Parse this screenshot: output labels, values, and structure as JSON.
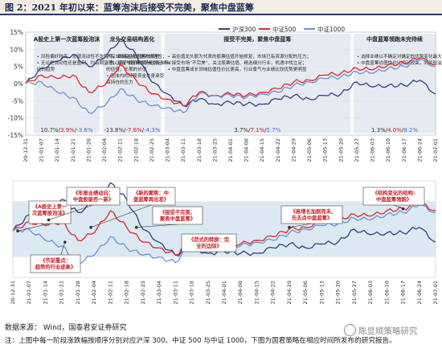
{
  "figure": {
    "title": "图 2：2021 年初以来：蓝筹泡沫后接受不完美，聚焦中盘蓝筹",
    "source": "数据来源：  Wind，国泰君安证券研究",
    "note": "注：上图中每一阶段涨跌幅按顺序分别对应沪深 300、中证 500 与中证 1000，下图为国君策略在相应时间所发布的研究报告。",
    "watermark": "陈显顺策略研究"
  },
  "colors": {
    "csi300": "#34427a",
    "csi500": "#e2252b",
    "csi1000": "#6e8fd6",
    "phase_fill": "#d2dbe9",
    "band_fill": "#bed7ea",
    "accent_red": "#c8191f"
  },
  "legend": [
    "沪深300",
    "中证500",
    "中证1000"
  ],
  "y_ticks": [
    "15%",
    "10%",
    "5%",
    "0%",
    "-5%",
    "-10%",
    "-15%"
  ],
  "dates": [
    "20-12-31",
    "21-01-07",
    "21-01-14",
    "21-01-21",
    "21-01-28",
    "21-02-04",
    "21-02-11",
    "21-02-18",
    "21-02-25",
    "21-03-04",
    "21-03-11",
    "21-03-18",
    "21-03-25",
    "21-04-01",
    "21-04-08",
    "21-04-15",
    "21-04-22",
    "21-04-29",
    "21-05-06",
    "21-05-13",
    "21-05-20",
    "21-05-27",
    "21-06-03",
    "21-06-10",
    "21-06-17",
    "21-06-24",
    "21-07-01"
  ],
  "phases": [
    {
      "title": "A股史上第一次蓝筹股泡沫",
      "desc": "• 风险偏好较高，宏观流动性不急转弯，跟随泡沫才是大的理性；\n• 无论是流动性还是盈利，均有期望差，基金与股票市场都将延续以\n  往的趋势",
      "ret300": "10.7%",
      "ret500": "3.9%",
      "ret1000": "-3.6%"
    },
    {
      "title": "龙头交易结构恶化",
      "desc": "沪深300高估值蓝筹的股价\n• 核心资产股价表现与过去十年\n  的估值，长期的价值\n• 泡沫内的持股资金本身承受\n  高持仓的压力",
      "ret300": "-13.8%",
      "ret500": "-7.6%",
      "ret1000": "-4.3%"
    },
    {
      "title": "接受不完美，聚焦中盘蓝筹",
      "desc": "• 高估值龙头股为代表的股票估值开始修复，市场已有资源分配的压力；\n• 接受市场“不完美”，关注股票估值、精选细分行业，机遇中找立足；\n• 中盘蓝筹成长领域估值性价比更高，行业景气与业绩比较优势更明显",
      "ret300": "3.7%",
      "ret500": "7.1%",
      "ret1000": "5.7%"
    },
    {
      "title": "中盘蓝筹领跑未完待续",
      "desc": "• 选择业绩以不确定对确定的优势变化最大的股票；\n• 中盘蓝筹估值性价比相对较高，同风险溢价，仍在变化的边际中",
      "ret300": "1.3%",
      "ret500": "4.0%",
      "ret1000": "8.2%"
    }
  ],
  "reports": [
    {
      "text": "《A股史上第一\n次蓝筹股泡沫》"
    },
    {
      "text": "《年报业绩动向：\n中盘股能否一新》"
    },
    {
      "text": "《新的聚焦：中\n盘蓝筹再出发》"
    },
    {
      "text": "《节前重点：\n趋势的行业迹象》"
    },
    {
      "text": "《接受不完美，\n聚焦中盘蓝筹》"
    },
    {
      "text": "《范式的转换：完\n全的边际》"
    },
    {
      "text": "《高增长加剧而未,\n先去点中盘蓝筹》"
    },
    {
      "text": "《结构变化的结构:\n中盘蓝筹领跑》"
    }
  ],
  "chart_data": [
    {
      "type": "line",
      "title": "",
      "xlabel": "",
      "ylabel": "",
      "ylim": [
        -15,
        15
      ],
      "legend": "top-right",
      "x": [
        "20-12-31",
        "21-01-07",
        "21-01-14",
        "21-01-21",
        "21-01-28",
        "21-02-04",
        "21-02-11",
        "21-02-18",
        "21-02-25",
        "21-03-04",
        "21-03-11",
        "21-03-18",
        "21-03-25",
        "21-04-01",
        "21-04-08",
        "21-04-15",
        "21-04-22",
        "21-04-29",
        "21-05-06",
        "21-05-13",
        "21-05-20",
        "21-05-27",
        "21-06-03",
        "21-06-10",
        "21-06-17",
        "21-06-24",
        "21-07-01"
      ],
      "series": [
        {
          "name": "沪深300",
          "values": [
            0,
            4.5,
            6.5,
            8.5,
            5.0,
            7.5,
            13.0,
            8.5,
            0.5,
            -3.0,
            -6.5,
            -4.5,
            -6.0,
            -5.5,
            -6.0,
            -6.0,
            -4.5,
            -3.5,
            -4.5,
            -3.5,
            -3.0,
            0.5,
            -1.0,
            -0.5,
            -0.5,
            1.0,
            -3.0
          ]
        },
        {
          "name": "中证500",
          "values": [
            0,
            2.5,
            1.5,
            2.5,
            -2.5,
            -0.5,
            5.5,
            1.0,
            -3.0,
            -4.5,
            -6.5,
            -2.5,
            -3.5,
            -3.0,
            -3.5,
            -2.5,
            -1.5,
            0.5,
            1.0,
            2.5,
            3.0,
            4.5,
            4.0,
            5.5,
            6.0,
            7.5,
            5.5
          ]
        },
        {
          "name": "中证1000",
          "values": [
            0,
            0.5,
            -2.5,
            -4.0,
            -8.5,
            -6.5,
            -1.5,
            -4.5,
            -6.5,
            -7.0,
            -8.5,
            -3.0,
            -3.5,
            -3.5,
            -4.0,
            -3.0,
            -2.5,
            -0.5,
            0.5,
            1.5,
            2.0,
            3.5,
            3.0,
            4.5,
            5.0,
            7.0,
            5.0
          ]
        }
      ]
    },
    {
      "type": "line",
      "title": "",
      "xlabel": "",
      "ylabel": "",
      "x": [
        "20-12-31",
        "21-01-07",
        "21-01-14",
        "21-01-21",
        "21-01-28",
        "21-02-04",
        "21-02-11",
        "21-02-18",
        "21-02-25",
        "21-03-04",
        "21-03-11",
        "21-03-18",
        "21-03-25",
        "21-04-01",
        "21-04-08",
        "21-04-15",
        "21-04-22",
        "21-04-29",
        "21-05-06",
        "21-05-13",
        "21-05-20",
        "21-05-27",
        "21-06-03",
        "21-06-10",
        "21-06-17",
        "21-06-24",
        "21-07-01"
      ],
      "series": [
        {
          "name": "沪深300",
          "values": [
            0,
            4.5,
            6.5,
            8.5,
            5.0,
            7.5,
            13.0,
            8.5,
            0.5,
            -3.0,
            -6.5,
            -4.5,
            -6.0,
            -5.5,
            -6.0,
            -6.0,
            -4.5,
            -3.5,
            -4.5,
            -3.5,
            -3.0,
            0.5,
            -1.0,
            -0.5,
            -0.5,
            1.0,
            -3.0
          ]
        },
        {
          "name": "中证500",
          "values": [
            0,
            2.5,
            1.5,
            2.5,
            -2.5,
            -0.5,
            5.5,
            1.0,
            -3.0,
            -4.5,
            -6.5,
            -2.5,
            -3.5,
            -3.0,
            -3.5,
            -2.5,
            -1.5,
            0.5,
            1.0,
            2.5,
            3.0,
            4.5,
            4.0,
            5.5,
            6.0,
            7.5,
            5.5
          ]
        },
        {
          "name": "中证1000",
          "values": [
            0,
            0.5,
            -2.5,
            -4.0,
            -8.5,
            -6.5,
            -1.5,
            -4.5,
            -6.5,
            -7.0,
            -8.5,
            -3.0,
            -3.5,
            -3.5,
            -4.0,
            -3.0,
            -2.5,
            -0.5,
            0.5,
            1.5,
            2.0,
            3.5,
            3.0,
            4.5,
            5.0,
            7.0,
            5.0
          ]
        }
      ]
    }
  ]
}
